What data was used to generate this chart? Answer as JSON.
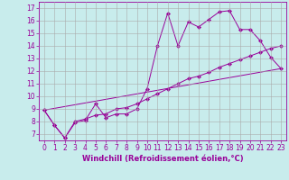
{
  "xlabel": "Windchill (Refroidissement éolien,°C)",
  "background_color": "#c8ecec",
  "line_color": "#990099",
  "xlim": [
    -0.5,
    23.5
  ],
  "ylim": [
    6.5,
    17.5
  ],
  "xticks": [
    0,
    1,
    2,
    3,
    4,
    5,
    6,
    7,
    8,
    9,
    10,
    11,
    12,
    13,
    14,
    15,
    16,
    17,
    18,
    19,
    20,
    21,
    22,
    23
  ],
  "yticks": [
    7,
    8,
    9,
    10,
    11,
    12,
    13,
    14,
    15,
    16,
    17
  ],
  "line1_x": [
    0,
    1,
    2,
    3,
    4,
    5,
    6,
    7,
    8,
    9,
    10,
    11,
    12,
    13,
    14,
    15,
    16,
    17,
    18,
    19,
    20,
    21,
    22,
    23
  ],
  "line1_y": [
    8.9,
    7.7,
    6.7,
    7.9,
    8.1,
    9.4,
    8.3,
    8.6,
    8.6,
    9.0,
    10.6,
    14.0,
    16.6,
    14.0,
    15.9,
    15.5,
    16.1,
    16.7,
    16.8,
    15.3,
    15.3,
    14.4,
    13.1,
    12.2
  ],
  "line2_x": [
    0,
    1,
    2,
    3,
    4,
    5,
    6,
    7,
    8,
    9,
    10,
    11,
    12,
    13,
    14,
    15,
    16,
    17,
    18,
    19,
    20,
    21,
    22,
    23
  ],
  "line2_y": [
    8.9,
    7.7,
    6.7,
    8.0,
    8.2,
    8.5,
    8.6,
    9.0,
    9.1,
    9.4,
    9.8,
    10.2,
    10.6,
    11.0,
    11.4,
    11.6,
    11.9,
    12.3,
    12.6,
    12.9,
    13.2,
    13.5,
    13.8,
    14.0
  ],
  "line3_x": [
    0,
    23
  ],
  "line3_y": [
    8.9,
    12.2
  ],
  "grid_color": "#aaaaaa",
  "marker": "D",
  "markersize": 2.2,
  "linewidth": 0.7,
  "tick_labelsize": 5.5,
  "xlabel_fontsize": 6.0
}
